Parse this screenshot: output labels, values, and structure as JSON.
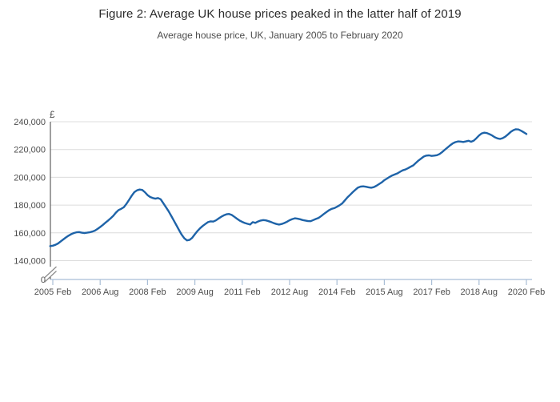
{
  "chart_data": {
    "type": "line",
    "title": "Figure 2: Average UK house prices peaked in the latter half of 2019",
    "subtitle": "Average house price, UK, January 2005 to February 2020",
    "y_axis_unit": "£",
    "y_tick_labels": [
      "240,000",
      "220,000",
      "200,000",
      "180,000",
      "160,000",
      "140,000"
    ],
    "y_zero_label": "0",
    "y_axis_break_to_zero": true,
    "ylim": [
      140000,
      240000
    ],
    "grid": "horizontal",
    "legend_position": "none",
    "x_tick_labels": [
      "2005 Feb",
      "2006 Aug",
      "2008 Feb",
      "2009 Aug",
      "2011 Feb",
      "2012 Aug",
      "2014 Feb",
      "2015 Aug",
      "2017 Feb",
      "2018 Aug",
      "2020 Feb"
    ],
    "x_start": "2005 Jan",
    "x_end": "2020 Feb",
    "frequency": "monthly",
    "colors": {
      "line": "#1e63a8",
      "grid": "#dcdcdc",
      "y_axis": "#606060",
      "x_axis": "#a9bed6",
      "break_mark": "#8a8a8a",
      "label": "#4d4d4d",
      "title": "#2b2b2b"
    },
    "series": [
      {
        "name": "Average house price (GBP)",
        "color": "#1e63a8",
        "values": [
          150500,
          150800,
          151400,
          152400,
          153900,
          155300,
          156700,
          158000,
          159100,
          159900,
          160400,
          160600,
          160100,
          159900,
          160100,
          160400,
          160900,
          161600,
          162800,
          164200,
          165700,
          167300,
          168900,
          170500,
          172300,
          174600,
          176400,
          177300,
          178500,
          180900,
          183800,
          186800,
          189300,
          190600,
          191200,
          190900,
          189300,
          187200,
          185800,
          185100,
          184600,
          185100,
          184200,
          181400,
          178500,
          175600,
          172300,
          168900,
          165400,
          161900,
          158700,
          156100,
          154600,
          154900,
          156500,
          159000,
          161400,
          163400,
          165000,
          166400,
          167700,
          168300,
          168100,
          169000,
          170300,
          171600,
          172600,
          173400,
          173600,
          172900,
          171600,
          170200,
          168900,
          167900,
          167100,
          166500,
          166000,
          167700,
          167200,
          168200,
          168900,
          169200,
          169000,
          168400,
          167800,
          167000,
          166400,
          166000,
          166400,
          167100,
          168000,
          169100,
          169900,
          170500,
          170200,
          169800,
          169200,
          168900,
          168500,
          168400,
          169200,
          170000,
          170800,
          172100,
          173600,
          174900,
          176300,
          177300,
          177800,
          178800,
          179900,
          181200,
          183400,
          185600,
          187400,
          189300,
          191000,
          192600,
          193300,
          193500,
          193200,
          192800,
          192500,
          192900,
          193900,
          195100,
          196300,
          197900,
          199100,
          200300,
          201300,
          202100,
          202800,
          204000,
          205000,
          205600,
          206500,
          207600,
          208600,
          210400,
          212100,
          213500,
          214900,
          215600,
          215800,
          215400,
          215600,
          215900,
          216800,
          218200,
          219800,
          221400,
          223000,
          224400,
          225300,
          225800,
          225700,
          225400,
          225800,
          226300,
          225600,
          226400,
          228100,
          230100,
          231600,
          232100,
          231800,
          231000,
          230100,
          228800,
          228000,
          227600,
          228200,
          229300,
          230900,
          232600,
          233900,
          234600,
          234400,
          233500,
          232400,
          231200
        ]
      }
    ]
  }
}
